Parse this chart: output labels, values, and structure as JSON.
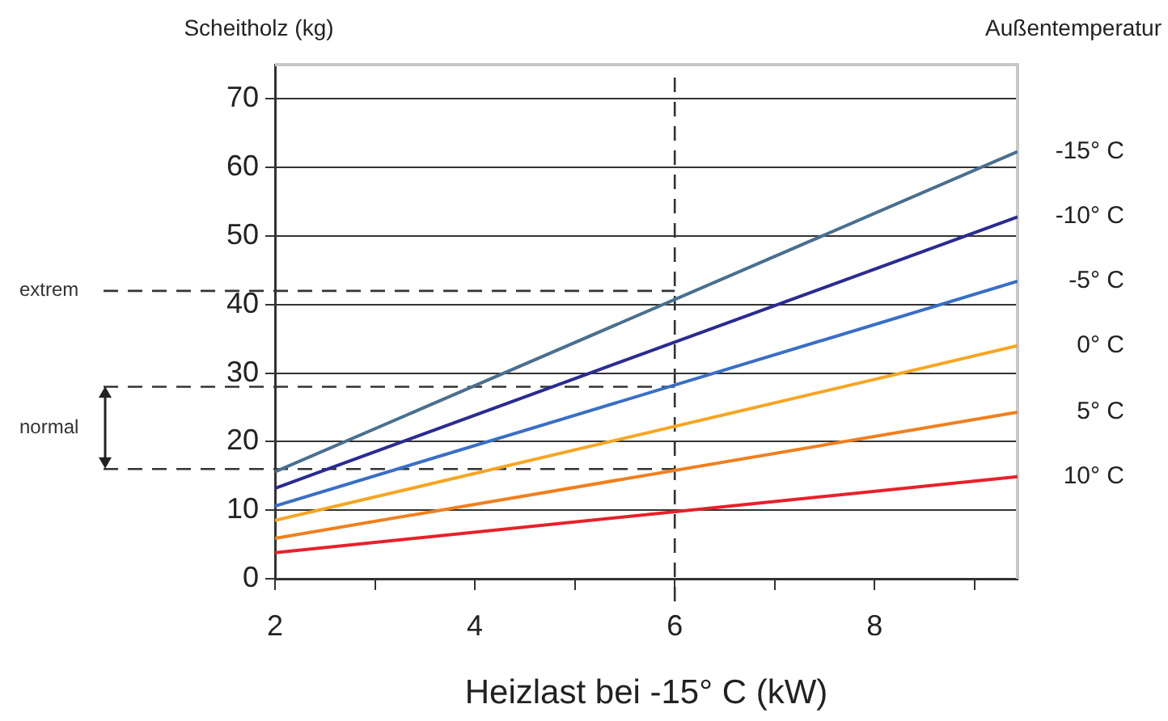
{
  "chart_data": {
    "type": "line",
    "xlabel": "Heizlast bei -15° C (kW)",
    "ylabel": "Scheitholz (kg)",
    "legend_title": "Außentemperatur",
    "x": [
      2,
      9.43
    ],
    "series": [
      {
        "name": "-15° C",
        "color": "#4a6f8f",
        "values": [
          15.6,
          62.3
        ]
      },
      {
        "name": "-10° C",
        "color": "#2b2b8f",
        "values": [
          13.2,
          52.8
        ]
      },
      {
        "name": "-5° C",
        "color": "#3a6fc4",
        "values": [
          10.6,
          43.4
        ]
      },
      {
        "name": "0° C",
        "color": "#f5a623",
        "values": [
          8.5,
          34
        ]
      },
      {
        "name": "5° C",
        "color": "#f07f1e",
        "values": [
          5.9,
          24.3
        ]
      },
      {
        "name": "10° C",
        "color": "#e8202a",
        "values": [
          3.8,
          14.9
        ]
      }
    ],
    "xlim": [
      2,
      9.43
    ],
    "xticks": [
      2,
      {
        "value": 3,
        "label": null
      },
      4,
      {
        "value": 5,
        "label": null
      },
      6,
      {
        "value": 7,
        "label": null
      },
      8,
      {
        "value": 9,
        "label": null
      }
    ],
    "ylim": [
      0,
      75
    ],
    "yticks": [
      0,
      10,
      20,
      30,
      40,
      50,
      60,
      70
    ],
    "ref_lines": [
      {
        "axis": "y",
        "value": 42,
        "label": "extrem",
        "line_style": "dashed"
      },
      {
        "axis": "y",
        "value": 28,
        "label": null,
        "line_style": "dashed"
      },
      {
        "axis": "y",
        "value": 16,
        "label": null,
        "line_style": "dashed"
      },
      {
        "axis": "x",
        "value": 6,
        "label": null,
        "line_style": "dashed"
      }
    ],
    "annotations": [
      "normal"
    ],
    "grid": "y",
    "marker": "none",
    "line_style": "solid"
  }
}
